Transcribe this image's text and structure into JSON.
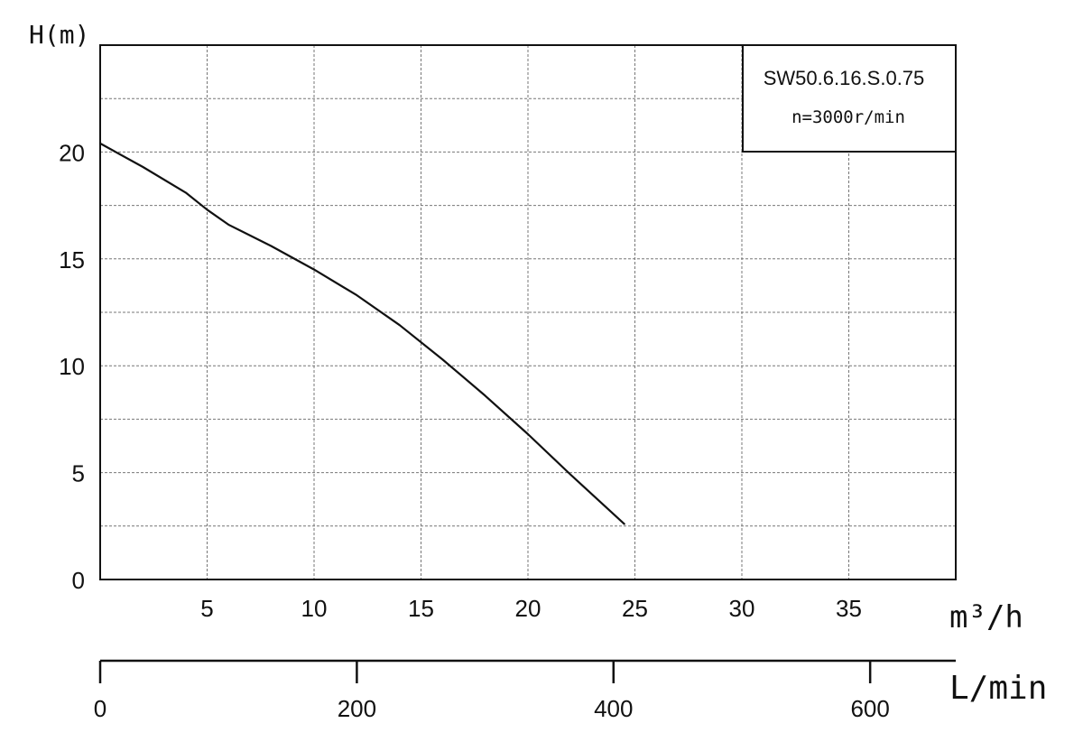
{
  "chart_data": {
    "type": "line",
    "title": "",
    "y_axis": {
      "label": "H(m)",
      "range": [
        0,
        25
      ],
      "ticks": [
        0,
        5,
        10,
        15,
        20
      ],
      "minor_step": 2.5
    },
    "x_axis": {
      "label": "m³/h",
      "range": [
        0,
        40
      ],
      "ticks": [
        5,
        10,
        15,
        20,
        25,
        30,
        35
      ],
      "grid_step": 5
    },
    "x2_axis": {
      "label": "L/min",
      "range": [
        0,
        666.7
      ],
      "ticks": [
        0,
        200,
        400,
        600
      ]
    },
    "grid": true,
    "legend": {
      "position": "top-right",
      "model": "SW50.6.16.S.0.75",
      "speed": "n=3000r/min"
    },
    "series": [
      {
        "x": [
          0,
          2,
          4,
          5,
          6,
          8,
          10,
          12,
          14,
          16,
          18,
          20,
          22,
          24.5
        ],
        "y": [
          20.4,
          19.3,
          18.1,
          17.3,
          16.6,
          15.6,
          14.5,
          13.3,
          11.9,
          10.3,
          8.6,
          6.8,
          4.9,
          2.6
        ]
      }
    ],
    "color": "#111111"
  }
}
